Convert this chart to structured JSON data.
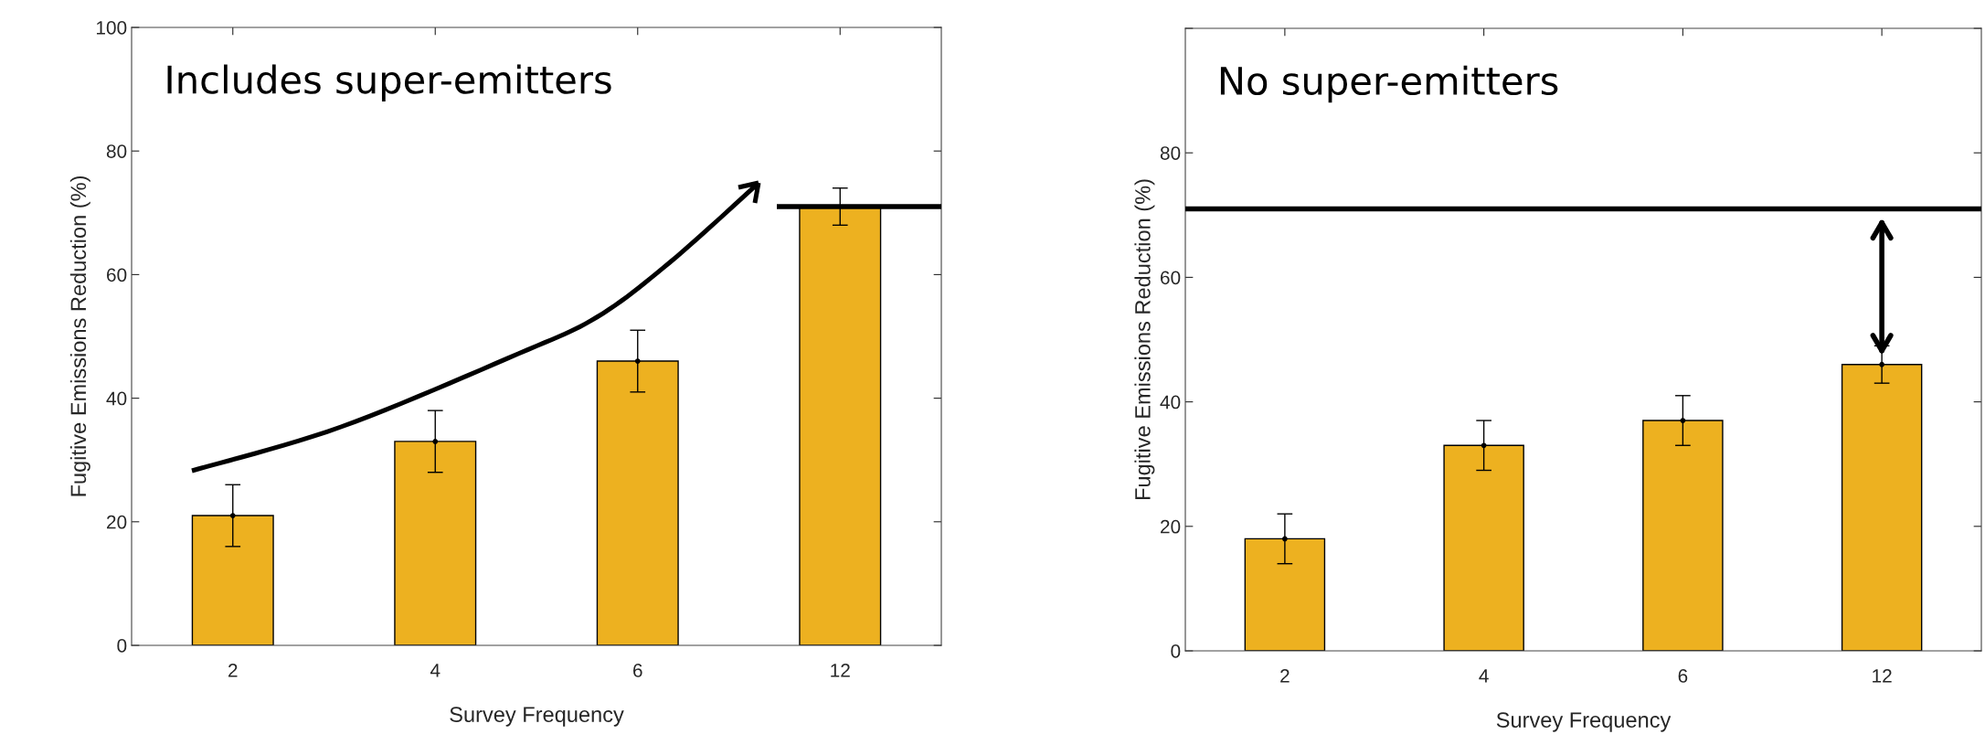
{
  "chart_data": [
    {
      "type": "bar",
      "categories": [
        "2",
        "4",
        "6",
        "12"
      ],
      "series": [
        {
          "type": "bar",
          "values": [
            21,
            33,
            46,
            71
          ],
          "errors": [
            5,
            5,
            5,
            3
          ],
          "color": "#edb120"
        },
        {
          "type": "scatter",
          "x": [
            "2",
            "4",
            "6",
            "12"
          ],
          "values": [
            21,
            33,
            46,
            null
          ],
          "color": "#000000",
          "marker": "circle"
        }
      ],
      "xlabel": "Survey Frequency",
      "ylabel": "Fugitive Emissions Reduction (%)",
      "ylim": [
        0,
        100
      ],
      "yticks": [
        0,
        20,
        40,
        60,
        80,
        100
      ],
      "annotations": [
        "Includes super-emitters"
      ],
      "ref_lines": [
        {
          "axis": "y",
          "value": 71,
          "color": "#000000"
        }
      ],
      "grid": false
    },
    {
      "type": "bar",
      "categories": [
        "2",
        "4",
        "6",
        "12"
      ],
      "series": [
        {
          "type": "bar",
          "values": [
            18,
            33,
            37,
            46
          ],
          "errors": [
            4,
            4,
            4,
            3
          ],
          "color": "#edb120"
        },
        {
          "type": "scatter",
          "x": [
            "2",
            "4",
            "6",
            "12"
          ],
          "values": [
            18,
            33,
            37,
            46
          ],
          "color": "#000000",
          "marker": "circle"
        }
      ],
      "xlabel": "Survey Frequency",
      "ylabel": "Fugitive Emissions Reduction (%)",
      "ylim": [
        0,
        100
      ],
      "yticks": [
        0,
        20,
        40,
        60,
        80,
        {
          "value": 100,
          "label": null
        }
      ],
      "annotations": [
        "No super-emitters"
      ],
      "ref_lines": [
        {
          "axis": "y",
          "value": 71,
          "color": "#000000"
        }
      ],
      "grid": false
    }
  ]
}
